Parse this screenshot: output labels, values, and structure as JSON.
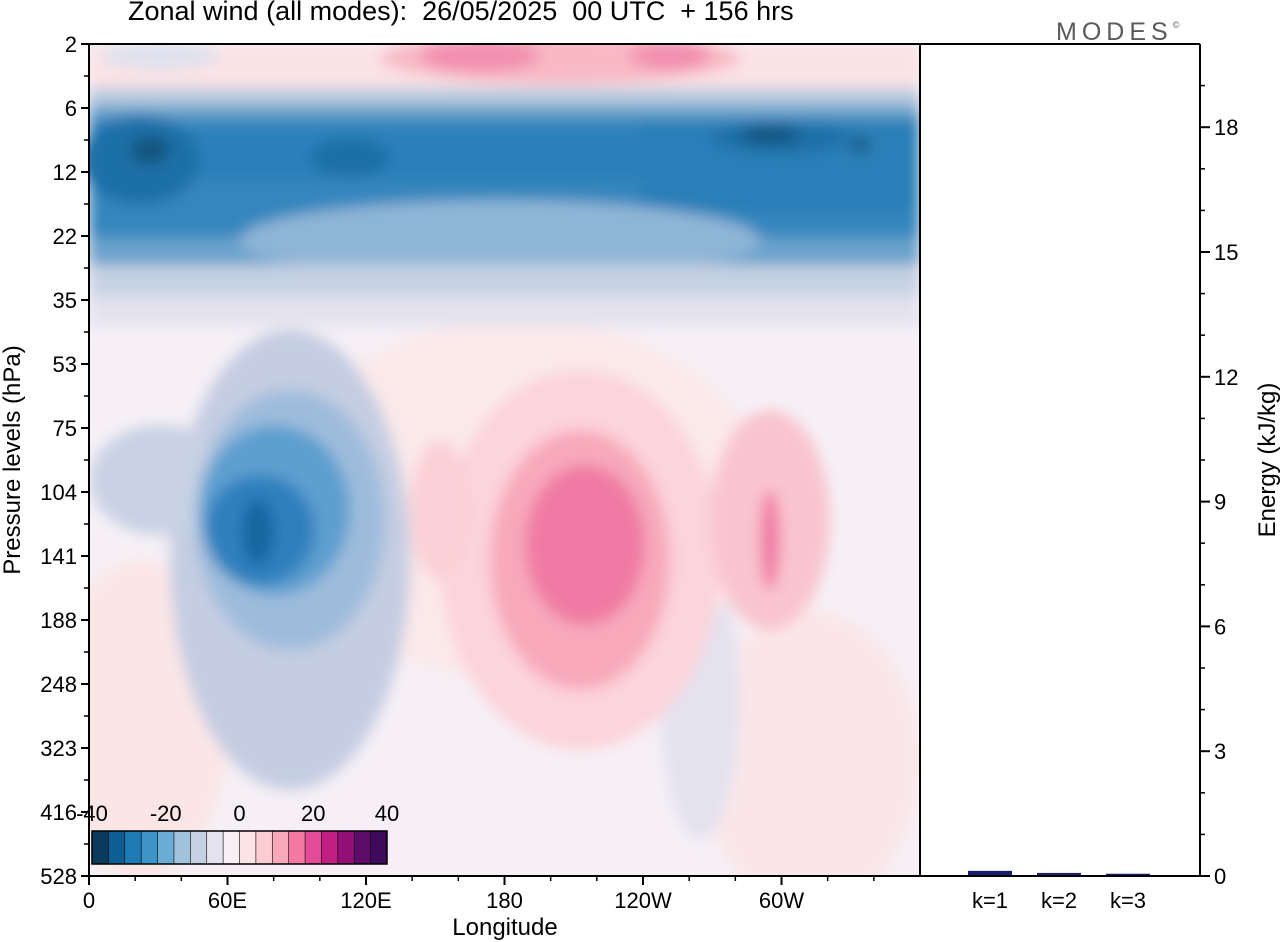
{
  "title": "Zonal wind (all modes):  26/05/2025  00 UTC  + 156 hrs",
  "brand": "MODES",
  "brand_mark": "©",
  "chart_data": [
    {
      "type": "heatmap",
      "title": "Zonal wind (all modes):  26/05/2025  00 UTC  + 156 hrs",
      "xlabel": "Longitude",
      "ylabel": "Pressure levels (hPa)",
      "x_ticks": [
        "0",
        "60E",
        "120E",
        "180",
        "120W",
        "60W"
      ],
      "x_tick_degrees": [
        0,
        60,
        120,
        180,
        240,
        300
      ],
      "xlim": [
        0,
        360
      ],
      "y_ticks": [
        "2",
        "6",
        "12",
        "22",
        "35",
        "53",
        "75",
        "104",
        "141",
        "188",
        "248",
        "323",
        "416",
        "528"
      ],
      "y_scale": "model levels (reversed, 2 hPa at top)",
      "colorbar": {
        "ticks": [
          "-40",
          "-20",
          "0",
          "20",
          "40"
        ],
        "range": [
          -40,
          40
        ],
        "colors": [
          "#0b3a5c",
          "#0d5e92",
          "#1f7bb4",
          "#3d94c6",
          "#6aaed6",
          "#9fc2dd",
          "#c5d0e3",
          "#e4e2ef",
          "#f7f1f6",
          "#fde4e4",
          "#fbcdd3",
          "#f7a9b8",
          "#f27aa2",
          "#e44b96",
          "#c21f83",
          "#921076",
          "#5e0b6a",
          "#3f0a5c"
        ]
      },
      "fields": [
        {
          "name": "stratospheric easterly jet",
          "value": -30,
          "level": "6-22 hPa",
          "longitudes": [
            0,
            360
          ]
        },
        {
          "name": "westerly maximum aloft",
          "value": 20,
          "level": "2-6 hPa",
          "longitudes": [
            130,
            290
          ]
        },
        {
          "name": "easterly core",
          "value": -30,
          "level": "104-188 hPa",
          "longitudes": [
            55,
            80
          ]
        },
        {
          "name": "westerly core",
          "value": 25,
          "level": "104-188 hPa",
          "longitudes": [
            195,
            225
          ]
        },
        {
          "name": "westerly core",
          "value": 15,
          "level": "104-188 hPa",
          "longitudes": [
            290,
            300
          ]
        }
      ]
    },
    {
      "type": "bar",
      "categories": [
        "k=1",
        "k=2",
        "k=3"
      ],
      "values": [
        0.1,
        0.05,
        0.03
      ],
      "ylabel": "Energy (kJ/kg)",
      "ylim": [
        0,
        20
      ],
      "y_ticks": [
        "0",
        "3",
        "6",
        "9",
        "12",
        "15",
        "18"
      ],
      "bar_color": "#1c1c6e"
    }
  ]
}
